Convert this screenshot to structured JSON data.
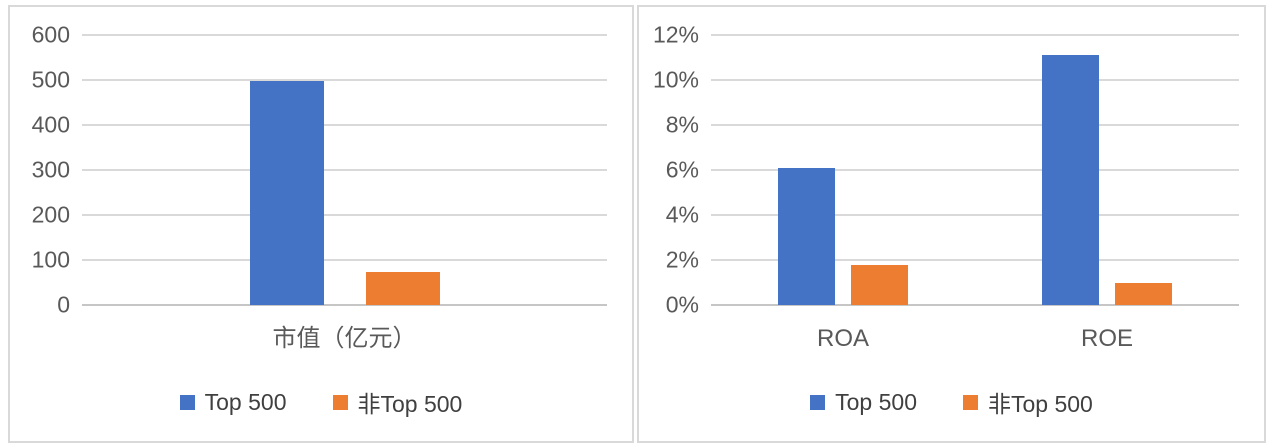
{
  "colors": {
    "series_blue": "#4472C4",
    "series_orange": "#ED7D31",
    "gridline": "#D9D9D9",
    "axis_text": "#595959",
    "legend_text": "#404040",
    "panel_border": "#D9D9D9"
  },
  "chart_data": [
    {
      "type": "bar",
      "title": "",
      "categories": [
        "市值（亿元）"
      ],
      "series": [
        {
          "name": "Top 500",
          "color": "#4472C4",
          "values": [
            497
          ]
        },
        {
          "name": "非Top 500",
          "color": "#ED7D31",
          "values": [
            73
          ]
        }
      ],
      "ylim": [
        0,
        600
      ],
      "yticks": [
        0,
        100,
        200,
        300,
        400,
        500,
        600
      ],
      "ytick_labels": [
        "0",
        "100",
        "200",
        "300",
        "400",
        "500",
        "600"
      ],
      "grid": true,
      "legend_position": "bottom"
    },
    {
      "type": "bar",
      "title": "",
      "categories": [
        "ROA",
        "ROE"
      ],
      "series": [
        {
          "name": "Top 500",
          "color": "#4472C4",
          "values": [
            6.1,
            11.1
          ]
        },
        {
          "name": "非Top 500",
          "color": "#ED7D31",
          "values": [
            1.8,
            1.0
          ]
        }
      ],
      "ylim": [
        0,
        12
      ],
      "yticks": [
        0,
        2,
        4,
        6,
        8,
        10,
        12
      ],
      "ytick_labels": [
        "0%",
        "2%",
        "4%",
        "6%",
        "8%",
        "10%",
        "12%"
      ],
      "grid": true,
      "legend_position": "bottom"
    }
  ]
}
